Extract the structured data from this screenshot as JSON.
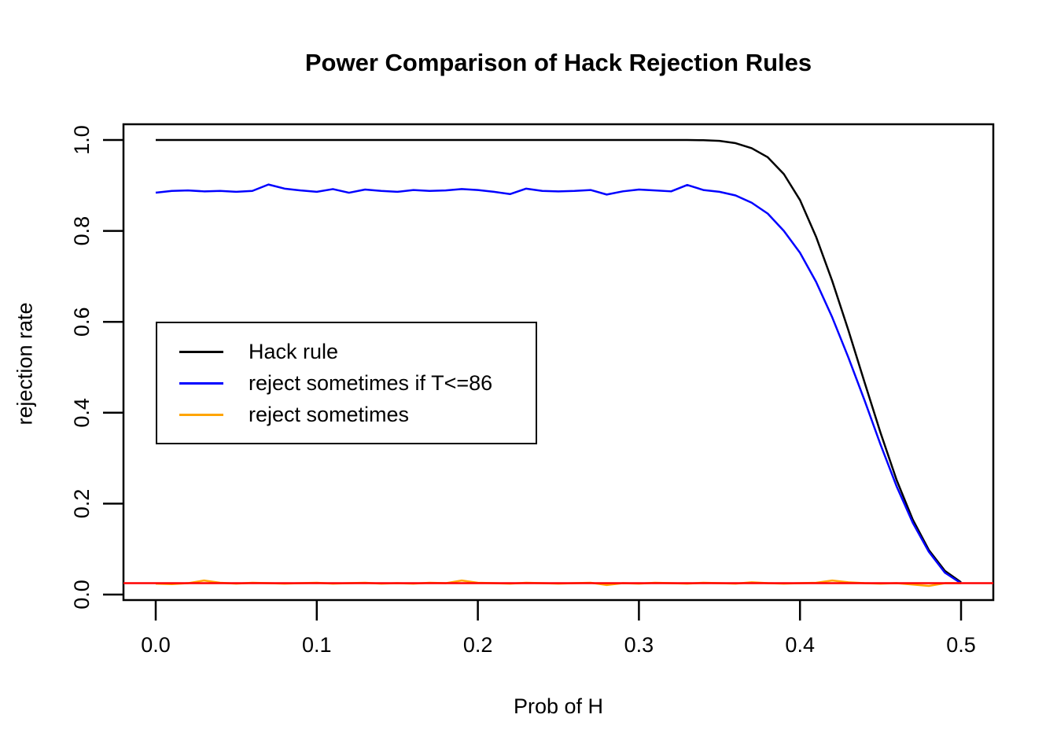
{
  "chart_data": {
    "type": "line",
    "title": "Power Comparison of Hack Rejection Rules",
    "xlabel": "Prob of H",
    "ylabel": "rejection rate",
    "x_ticks": [
      "0.0",
      "0.1",
      "0.2",
      "0.3",
      "0.4",
      "0.5"
    ],
    "y_ticks": [
      "0.0",
      "0.2",
      "0.4",
      "0.6",
      "0.8",
      "1.0"
    ],
    "xlim": [
      0,
      0.5
    ],
    "ylim": [
      0,
      1
    ],
    "grid": false,
    "legend_position": "center-left",
    "reference_line": {
      "y": 0.025,
      "color": "#FF0000"
    },
    "x": [
      0,
      0.01,
      0.02,
      0.03,
      0.04,
      0.05,
      0.06,
      0.07,
      0.08,
      0.09,
      0.1,
      0.11,
      0.12,
      0.13,
      0.14,
      0.15,
      0.16,
      0.17,
      0.18,
      0.19,
      0.2,
      0.21,
      0.22,
      0.23,
      0.24,
      0.25,
      0.26,
      0.27,
      0.28,
      0.29,
      0.3,
      0.31,
      0.32,
      0.33,
      0.34,
      0.35,
      0.36,
      0.37,
      0.38,
      0.39,
      0.4,
      0.41,
      0.42,
      0.43,
      0.44,
      0.45,
      0.46,
      0.47,
      0.48,
      0.49,
      0.5
    ],
    "series": [
      {
        "name": "Hack rule",
        "color": "#000000",
        "values": [
          1,
          1,
          1,
          1,
          1,
          1,
          1,
          1,
          1,
          1,
          1,
          1,
          1,
          1,
          1,
          1,
          1,
          1,
          1,
          1,
          1,
          1,
          1,
          1,
          1,
          1,
          1,
          1,
          1,
          1,
          1,
          1,
          1,
          1,
          0.9995,
          0.998,
          0.993,
          0.982,
          0.962,
          0.925,
          0.868,
          0.787,
          0.69,
          0.582,
          0.468,
          0.356,
          0.252,
          0.165,
          0.098,
          0.052,
          0.027
        ]
      },
      {
        "name": "reject sometimes if T<=86",
        "color": "#0000FF",
        "values": [
          0.884,
          0.888,
          0.889,
          0.887,
          0.888,
          0.886,
          0.888,
          0.902,
          0.893,
          0.889,
          0.886,
          0.892,
          0.884,
          0.891,
          0.888,
          0.886,
          0.89,
          0.888,
          0.889,
          0.892,
          0.89,
          0.886,
          0.881,
          0.893,
          0.888,
          0.887,
          0.888,
          0.89,
          0.88,
          0.887,
          0.891,
          0.889,
          0.887,
          0.901,
          0.89,
          0.886,
          0.878,
          0.862,
          0.838,
          0.8,
          0.752,
          0.688,
          0.61,
          0.522,
          0.428,
          0.33,
          0.238,
          0.158,
          0.094,
          0.048,
          0.025
        ]
      },
      {
        "name": "reject sometimes",
        "color": "#FFA500",
        "values": [
          0.024,
          0.023,
          0.025,
          0.031,
          0.026,
          0.024,
          0.026,
          0.025,
          0.024,
          0.025,
          0.026,
          0.024,
          0.025,
          0.026,
          0.024,
          0.025,
          0.024,
          0.026,
          0.025,
          0.031,
          0.026,
          0.025,
          0.024,
          0.026,
          0.025,
          0.024,
          0.025,
          0.026,
          0.021,
          0.025,
          0.024,
          0.026,
          0.025,
          0.024,
          0.026,
          0.025,
          0.024,
          0.027,
          0.025,
          0.024,
          0.025,
          0.026,
          0.031,
          0.027,
          0.025,
          0.024,
          0.025,
          0.022,
          0.019,
          0.025,
          0.025
        ]
      }
    ]
  }
}
